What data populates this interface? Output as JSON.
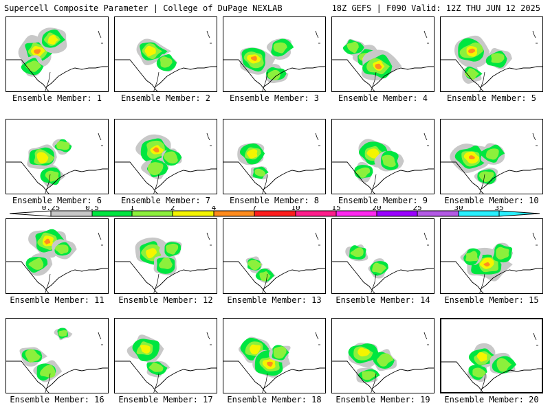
{
  "header": {
    "left_title": "Supercell Composite Parameter | College of DuPage NEXLAB",
    "right_title": "18Z GEFS | F090 Valid: 12Z THU JUN 12 2025"
  },
  "legend": {
    "ticks": [
      "0.25",
      "0.5",
      "1",
      "2",
      "4",
      "7",
      "10",
      "15",
      "20",
      "25",
      "30",
      "35"
    ],
    "colors": [
      "#ffffff",
      "#c8c8c8",
      "#00e640",
      "#8cf03c",
      "#f5f500",
      "#ff8c1e",
      "#ff1e1e",
      "#ff1e8c",
      "#ff28f0",
      "#9b00ff",
      "#b45ae6",
      "#28f0ff"
    ]
  },
  "panels": [
    {
      "member": 1,
      "label": "Ensemble Member: 1"
    },
    {
      "member": 2,
      "label": "Ensemble Member: 2"
    },
    {
      "member": 3,
      "label": "Ensemble Member: 3"
    },
    {
      "member": 4,
      "label": "Ensemble Member: 4"
    },
    {
      "member": 5,
      "label": "Ensemble Member: 5"
    },
    {
      "member": 6,
      "label": "Ensemble Member: 6"
    },
    {
      "member": 7,
      "label": "Ensemble Member: 7"
    },
    {
      "member": 8,
      "label": "Ensemble Member: 8"
    },
    {
      "member": 9,
      "label": "Ensemble Member: 9"
    },
    {
      "member": 10,
      "label": "Ensemble Member: 10"
    },
    {
      "member": 11,
      "label": "Ensemble Member: 11"
    },
    {
      "member": 12,
      "label": "Ensemble Member: 12"
    },
    {
      "member": 13,
      "label": "Ensemble Member: 13"
    },
    {
      "member": 14,
      "label": "Ensemble Member: 14"
    },
    {
      "member": 15,
      "label": "Ensemble Member: 15"
    },
    {
      "member": 16,
      "label": "Ensemble Member: 16"
    },
    {
      "member": 17,
      "label": "Ensemble Member: 17"
    },
    {
      "member": 18,
      "label": "Ensemble Member: 18"
    },
    {
      "member": 19,
      "label": "Ensemble Member: 19"
    },
    {
      "member": 20,
      "label": "Ensemble Member: 20"
    }
  ],
  "selected_member": 20
}
